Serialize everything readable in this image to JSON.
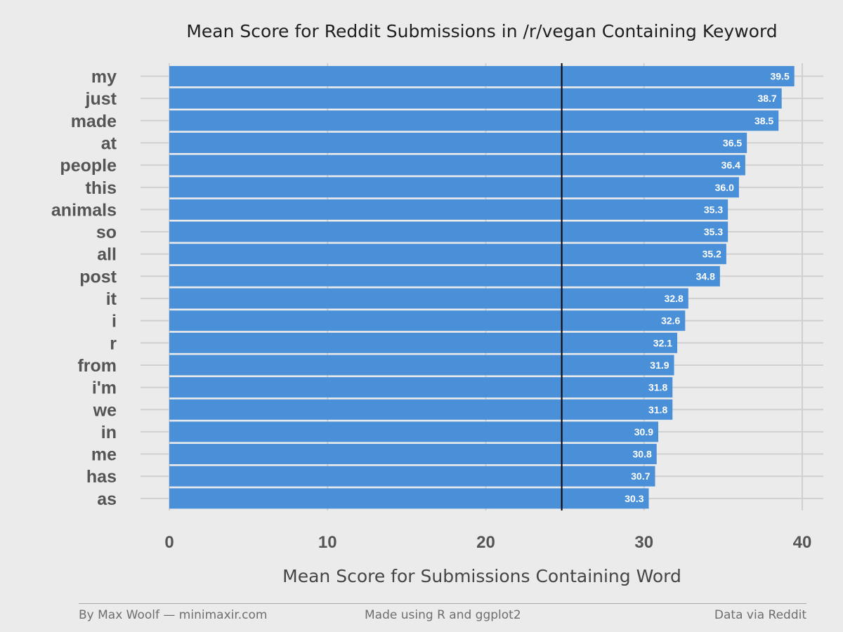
{
  "chart_data": {
    "type": "bar",
    "orientation": "horizontal",
    "title": "Mean Score for Reddit Submissions in /r/vegan Containing Keyword",
    "xlabel": "Mean Score for Submissions Containing Word",
    "ylabel": "",
    "categories": [
      "my",
      "just",
      "made",
      "at",
      "people",
      "this",
      "animals",
      "so",
      "all",
      "post",
      "it",
      "i",
      "r",
      "from",
      "i'm",
      "we",
      "in",
      "me",
      "has",
      "as"
    ],
    "values": [
      39.5,
      38.7,
      38.5,
      36.5,
      36.4,
      36.0,
      35.3,
      35.3,
      35.2,
      34.8,
      32.8,
      32.6,
      32.1,
      31.9,
      31.8,
      31.8,
      30.9,
      30.8,
      30.7,
      30.3
    ],
    "data_labels": [
      "39.5",
      "38.7",
      "38.5",
      "36.5",
      "36.4",
      "36.0",
      "35.3",
      "35.3",
      "35.2",
      "34.8",
      "32.8",
      "32.6",
      "32.1",
      "31.9",
      "31.8",
      "31.8",
      "30.9",
      "30.8",
      "30.7",
      "30.3"
    ],
    "x_ticks": [
      0,
      10,
      20,
      30,
      40
    ],
    "xlim": [
      0,
      40
    ],
    "reference_line": 24.8,
    "grid": true,
    "bar_color": "#4a90d9",
    "reference_line_color": "#000000"
  },
  "footer": {
    "left": "By Max Woolf — minimaxir.com",
    "center": "Made using R and ggplot2",
    "right": "Data via Reddit"
  }
}
